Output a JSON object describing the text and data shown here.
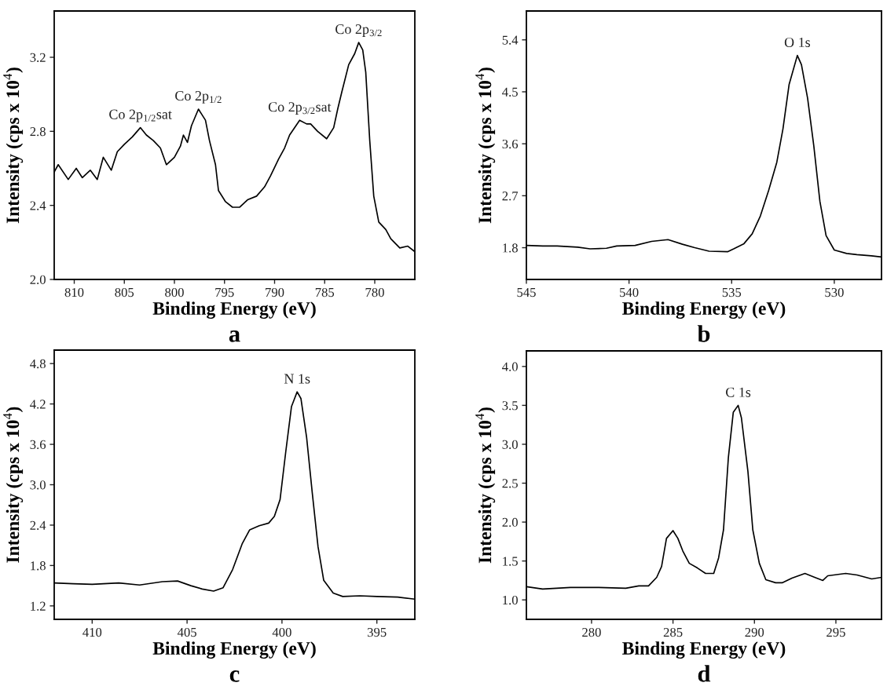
{
  "chart_data": [
    {
      "type": "line",
      "xlabel": "Binding Energy (eV)",
      "ylabel": "Intensity (cps x 10$^{4}$)",
      "xlim": [
        812,
        776
      ],
      "ylim": [
        2.0,
        3.45
      ],
      "xticks": [
        810,
        805,
        800,
        795,
        790,
        785,
        780
      ],
      "yticks": [
        {
          "value": 2.0,
          "label": "2.0"
        },
        2.4,
        2.8,
        3.2
      ],
      "marker": "none",
      "line_style": "solid",
      "series": [
        {
          "color": "#000000",
          "x": [
            812,
            811.6,
            810.6,
            809.8,
            809.2,
            808.4,
            807.7,
            807.1,
            806.3,
            805.7,
            805.0,
            804.2,
            803.4,
            802.8,
            802.1,
            801.4,
            800.8,
            800.0,
            799.4,
            799.1,
            798.7,
            798.3,
            797.6,
            796.9,
            796.5,
            795.9,
            795.6,
            794.9,
            794.2,
            793.5,
            792.7,
            791.8,
            791.0,
            790.4,
            789.6,
            789.0,
            788.5,
            787.5,
            786.8,
            786.4,
            785.7,
            784.8,
            784.1,
            783.7,
            783.3,
            782.6,
            782.0,
            781.6,
            781.2,
            780.9,
            780.5,
            780.1,
            779.6,
            778.9,
            778.4,
            777.5,
            776.7,
            776.0
          ],
          "values": [
            2.58,
            2.62,
            2.54,
            2.6,
            2.55,
            2.59,
            2.54,
            2.66,
            2.59,
            2.69,
            2.73,
            2.77,
            2.82,
            2.78,
            2.75,
            2.71,
            2.62,
            2.66,
            2.72,
            2.78,
            2.74,
            2.83,
            2.92,
            2.86,
            2.75,
            2.62,
            2.48,
            2.42,
            2.39,
            2.39,
            2.43,
            2.45,
            2.5,
            2.56,
            2.65,
            2.71,
            2.78,
            2.86,
            2.84,
            2.84,
            2.8,
            2.76,
            2.82,
            2.92,
            3.01,
            3.16,
            3.22,
            3.28,
            3.24,
            3.12,
            2.75,
            2.45,
            2.31,
            2.27,
            2.22,
            2.17,
            2.18,
            2.15
          ]
        }
      ],
      "annotations": [
        {
          "text": "Co 2p$_{1/2}$sat",
          "x": 803.4,
          "y": 2.82
        },
        {
          "text": "Co 2p$_{1/2}$",
          "x": 797.6,
          "y": 2.92
        },
        {
          "text": "Co 2p$_{3/2}$sat",
          "x": 787.5,
          "y": 2.86
        },
        {
          "text": "Co 2p$_{3/2}$",
          "x": 781.6,
          "y": 3.28
        },
        "a"
      ]
    },
    {
      "type": "line",
      "xlabel": "Binding Energy (eV)",
      "ylabel": "Intensity (cps x 10$^{4}$)",
      "xlim": [
        545,
        527.7
      ],
      "ylim": [
        1.25,
        5.9
      ],
      "xticks": [
        545,
        540,
        535,
        530
      ],
      "yticks": [
        1.8,
        2.7,
        3.6,
        4.5,
        5.4
      ],
      "marker": "none",
      "line_style": "solid",
      "series": [
        {
          "color": "#000000",
          "x": [
            545,
            544.2,
            543.5,
            542.5,
            541.9,
            541.1,
            540.6,
            539.7,
            538.9,
            538.1,
            537.4,
            536.8,
            536.1,
            535.2,
            534.9,
            534.4,
            534.0,
            533.6,
            533.2,
            532.8,
            532.5,
            532.2,
            531.8,
            531.6,
            531.3,
            531.0,
            530.7,
            530.4,
            530.0,
            529.4,
            528.9,
            528.2,
            527.7
          ],
          "values": [
            1.84,
            1.83,
            1.83,
            1.81,
            1.78,
            1.79,
            1.83,
            1.84,
            1.91,
            1.94,
            1.86,
            1.8,
            1.74,
            1.73,
            1.78,
            1.87,
            2.04,
            2.35,
            2.79,
            3.28,
            3.86,
            4.63,
            5.13,
            4.97,
            4.39,
            3.57,
            2.6,
            2.01,
            1.76,
            1.7,
            1.68,
            1.66,
            1.64
          ]
        }
      ],
      "annotations": [
        {
          "text": "O 1s",
          "x": 531.8,
          "y": 5.13
        },
        "b"
      ]
    },
    {
      "type": "line",
      "xlabel": "Binding Energy (eV)",
      "ylabel": "Intensity (cps x 10$^{4}$)",
      "xlim": [
        412,
        393
      ],
      "ylim": [
        1.0,
        5.0
      ],
      "xticks": [
        410,
        405,
        400,
        395
      ],
      "yticks": [
        1.2,
        1.8,
        2.4,
        {
          "value": 3.0,
          "label": "3.0"
        },
        3.6,
        4.2,
        4.8
      ],
      "marker": "none",
      "line_style": "solid",
      "series": [
        {
          "color": "#000000",
          "x": [
            412,
            411.0,
            410.0,
            408.6,
            407.5,
            406.3,
            405.5,
            404.8,
            404.2,
            403.6,
            403.1,
            402.6,
            402.1,
            401.7,
            401.2,
            400.7,
            400.4,
            400.1,
            399.8,
            399.5,
            399.2,
            399.0,
            398.7,
            398.4,
            398.1,
            397.8,
            397.3,
            396.8,
            395.9,
            395.0,
            393.9,
            393.0
          ],
          "values": [
            1.54,
            1.53,
            1.52,
            1.54,
            1.51,
            1.56,
            1.57,
            1.5,
            1.45,
            1.42,
            1.47,
            1.74,
            2.12,
            2.33,
            2.39,
            2.43,
            2.53,
            2.78,
            3.49,
            4.16,
            4.38,
            4.28,
            3.7,
            2.87,
            2.08,
            1.58,
            1.39,
            1.34,
            1.35,
            1.34,
            1.33,
            1.3
          ]
        }
      ],
      "annotations": [
        {
          "text": "N 1s",
          "x": 399.2,
          "y": 4.38
        },
        "c"
      ]
    },
    {
      "type": "line",
      "xlabel": "Binding Energy (eV)",
      "ylabel": "Intensity (cps x 10$^{4}$)",
      "xlim": [
        276,
        297.8
      ],
      "ylim": [
        0.75,
        4.2
      ],
      "xticks": [
        280,
        285,
        290,
        295
      ],
      "yticks": [
        {
          "value": 1.0,
          "label": "1.0"
        },
        1.5,
        {
          "value": 2.0,
          "label": "2.0"
        },
        2.5,
        {
          "value": 3.0,
          "label": "3.0"
        },
        3.5,
        {
          "value": 4.0,
          "label": "4.0"
        }
      ],
      "marker": "none",
      "line_style": "solid",
      "series": [
        {
          "color": "#000000",
          "x": [
            276.0,
            277.0,
            278.7,
            280.4,
            282.1,
            282.9,
            283.5,
            284.0,
            284.3,
            284.6,
            285.0,
            285.3,
            285.6,
            286.0,
            286.5,
            287.0,
            287.5,
            287.8,
            288.1,
            288.4,
            288.7,
            289.0,
            289.2,
            289.6,
            289.9,
            290.3,
            290.7,
            291.3,
            291.7,
            292.3,
            293.1,
            293.7,
            294.2,
            294.5,
            295.6,
            296.3,
            297.2,
            297.8
          ],
          "values": [
            1.17,
            1.14,
            1.16,
            1.16,
            1.15,
            1.18,
            1.18,
            1.29,
            1.43,
            1.79,
            1.89,
            1.79,
            1.63,
            1.47,
            1.41,
            1.34,
            1.34,
            1.54,
            1.9,
            2.83,
            3.41,
            3.5,
            3.34,
            2.65,
            1.9,
            1.47,
            1.26,
            1.22,
            1.22,
            1.28,
            1.34,
            1.29,
            1.25,
            1.31,
            1.34,
            1.32,
            1.27,
            1.29
          ]
        }
      ],
      "annotations": [
        {
          "text": "C 1s",
          "x": 289.0,
          "y": 3.5
        },
        "d"
      ]
    }
  ]
}
